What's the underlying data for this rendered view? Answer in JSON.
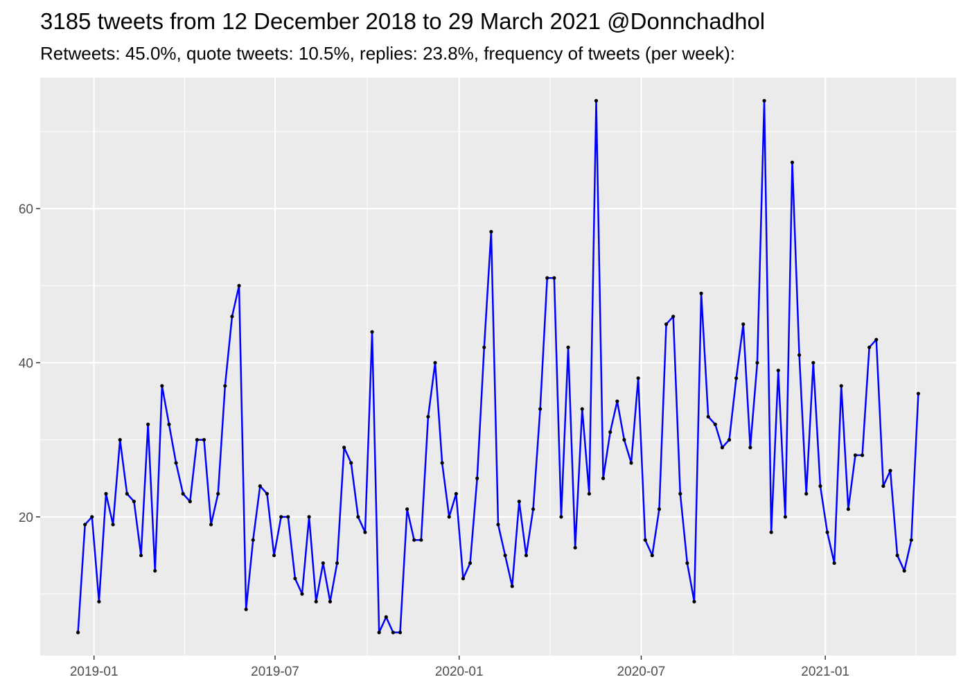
{
  "chart_data": {
    "type": "line",
    "title": "3185 tweets from 12 December 2018 to 29 March 2021 @Donnchadhol",
    "subtitle": "Retweets: 45.0%, quote tweets: 10.5%, replies: 23.8%, frequency of tweets (per week):",
    "xlabel": "",
    "ylabel": "",
    "x_start": "2018-12-16",
    "x_step_days": 7,
    "x_ticks": [
      "2019-01",
      "2019-07",
      "2020-01",
      "2020-07",
      "2021-01"
    ],
    "y_ticks": [
      20,
      40,
      60
    ],
    "ylim": [
      2,
      77
    ],
    "grid": true,
    "legend": "none",
    "series": [
      {
        "values": [
          5,
          19,
          20,
          9,
          23,
          19,
          30,
          23,
          22,
          15,
          32,
          13,
          37,
          32,
          27,
          23,
          22,
          30,
          30,
          19,
          23,
          37,
          46,
          50,
          8,
          17,
          24,
          23,
          15,
          20,
          20,
          12,
          10,
          20,
          9,
          14,
          9,
          14,
          29,
          27,
          20,
          18,
          44,
          5,
          7,
          5,
          5,
          21,
          17,
          17,
          33,
          40,
          27,
          20,
          23,
          12,
          14,
          25,
          42,
          57,
          19,
          15,
          11,
          22,
          15,
          21,
          34,
          51,
          51,
          20,
          42,
          16,
          34,
          23,
          74,
          25,
          31,
          35,
          30,
          27,
          38,
          17,
          15,
          21,
          45,
          46,
          23,
          14,
          9,
          49,
          33,
          32,
          29,
          30,
          38,
          45,
          29,
          40,
          74,
          18,
          39,
          20,
          66,
          41,
          23,
          40,
          24,
          18,
          14,
          37,
          21,
          28,
          28,
          42,
          43,
          24,
          26,
          15,
          13,
          17,
          36
        ],
        "line_color": "#0000ff",
        "point_color": "#000000"
      }
    ],
    "colors": {
      "panel": "#ebebeb",
      "grid": "#ffffff",
      "axis_text": "#4d4d4d"
    }
  }
}
